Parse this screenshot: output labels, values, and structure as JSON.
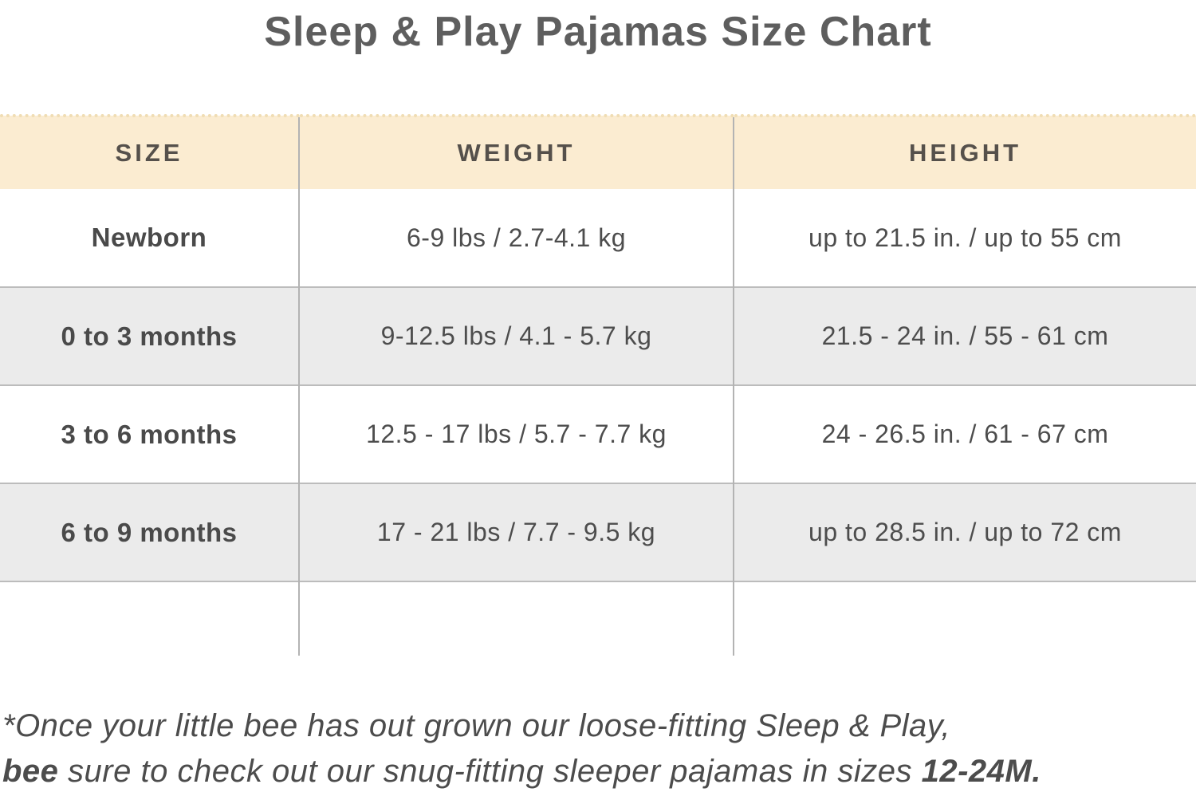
{
  "title": "Sleep & Play Pajamas Size Chart",
  "table": {
    "columns": [
      {
        "label": "SIZE"
      },
      {
        "label": "WEIGHT"
      },
      {
        "label": "HEIGHT"
      }
    ],
    "rows": [
      {
        "size": "Newborn",
        "weight": "6-9 lbs / 2.7-4.1 kg",
        "height": "up to 21.5 in. / up to 55 cm"
      },
      {
        "size": "0 to 3 months",
        "weight": "9-12.5 lbs / 4.1 - 5.7 kg",
        "height": "21.5 - 24 in. / 55 - 61 cm"
      },
      {
        "size": "3 to 6 months",
        "weight": "12.5 - 17 lbs / 5.7 - 7.7 kg",
        "height": "24 - 26.5 in. / 61 - 67 cm"
      },
      {
        "size": "6 to 9 months",
        "weight": "17 - 21 lbs / 7.7 - 9.5 kg",
        "height": "up to 28.5 in. / up to 72 cm"
      }
    ]
  },
  "footnote": {
    "line1": "*Once your little bee has out grown our loose-fitting Sleep & Play,",
    "line2_bold_start": "bee",
    "line2_middle": " sure to check out our snug-fitting sleeper pajamas in sizes ",
    "line2_bold_end": "12-24M."
  },
  "colors": {
    "header_background": "#fbecd1",
    "header_dotted_border": "#f0ddb4",
    "shaded_row_background": "#ebebeb",
    "row_border": "#bcbcbc",
    "column_divider": "#b3b3b3",
    "text": "#4d4d4d",
    "title_text": "#5e5e5e"
  },
  "chart_data": {
    "type": "table",
    "title": "Sleep & Play Pajamas Size Chart",
    "columns": [
      "SIZE",
      "WEIGHT",
      "HEIGHT"
    ],
    "rows": [
      [
        "Newborn",
        "6-9 lbs / 2.7-4.1 kg",
        "up to 21.5 in. / up to 55 cm"
      ],
      [
        "0 to 3 months",
        "9-12.5 lbs / 4.1 - 5.7 kg",
        "21.5 - 24 in. / 55 - 61 cm"
      ],
      [
        "3 to 6 months",
        "12.5 - 17 lbs / 5.7 - 7.7 kg",
        "24 - 26.5 in. / 61 - 67 cm"
      ],
      [
        "6 to 9 months",
        "17 - 21 lbs / 7.7 - 9.5 kg",
        "up to 28.5 in. / up to 72 cm"
      ]
    ],
    "footnote": "*Once your little bee has out grown our loose-fitting Sleep & Play, bee sure to check out our snug-fitting sleeper pajamas in sizes 12-24M."
  }
}
